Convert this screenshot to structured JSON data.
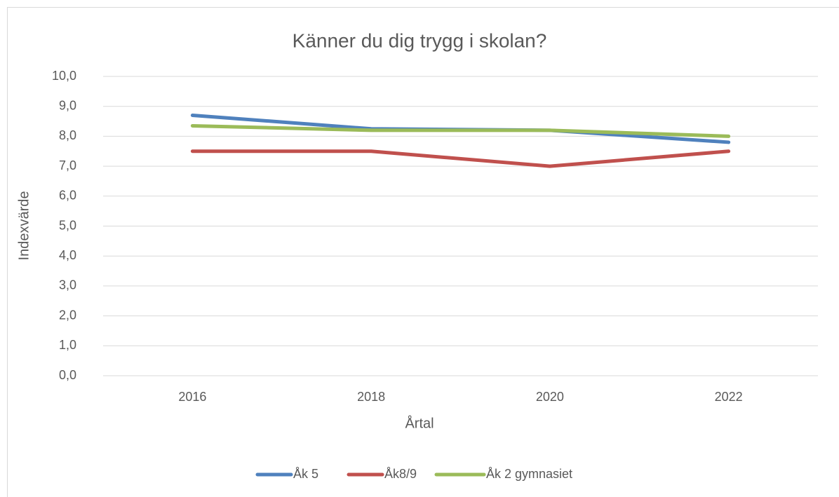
{
  "chart_data": {
    "type": "line",
    "title": "Känner du dig trygg i skolan?",
    "x_label": "Årtal",
    "y_label": "Indexvärde",
    "categories": [
      "2016",
      "2018",
      "2020",
      "2022"
    ],
    "series": [
      {
        "name": "Åk 5",
        "color": "#4f81bd",
        "values": [
          8.7,
          8.25,
          8.2,
          7.8
        ]
      },
      {
        "name": "Åk8/9",
        "color": "#c0504d",
        "values": [
          7.5,
          7.5,
          7.0,
          7.5
        ]
      },
      {
        "name": "Åk 2 gymnasiet",
        "color": "#9bbb59",
        "values": [
          8.35,
          8.2,
          8.2,
          8.0
        ]
      }
    ],
    "ylim": [
      0,
      10
    ],
    "yticks": [
      {
        "value": 0,
        "label": "0,0"
      },
      {
        "value": 1,
        "label": "1,0"
      },
      {
        "value": 2,
        "label": "2,0"
      },
      {
        "value": 3,
        "label": "3,0"
      },
      {
        "value": 4,
        "label": "4,0"
      },
      {
        "value": 5,
        "label": "5,0"
      },
      {
        "value": 6,
        "label": "6,0"
      },
      {
        "value": 7,
        "label": "7,0"
      },
      {
        "value": 8,
        "label": "8,0"
      },
      {
        "value": 9,
        "label": "9,0"
      },
      {
        "value": 10,
        "label": "10,0"
      }
    ],
    "grid": true,
    "legend": "bottom"
  }
}
